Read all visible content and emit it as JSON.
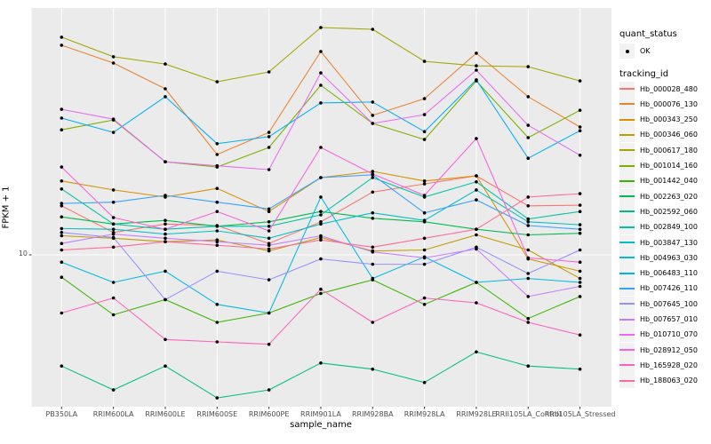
{
  "colors": {
    "panel_background": "#EBEBEB",
    "grid": "#FFFFFF",
    "point": "#000000",
    "tick": "#333333",
    "tick_label": "#4D4D4D",
    "legend_key_background": "#F2F2F2"
  },
  "axes": {
    "y": {
      "title": "FPKM + 1",
      "tick_label": "10"
    },
    "x": {
      "title": "sample_name"
    }
  },
  "legend": {
    "quant_status": {
      "title": "quant_status",
      "items": [
        {
          "label": "OK",
          "marker": "point",
          "color": "#000000"
        }
      ]
    },
    "tracking_id": {
      "title": "tracking_id"
    }
  },
  "chart_data": {
    "type": "line",
    "title": "",
    "xlabel": "sample_name",
    "ylabel": "FPKM + 1",
    "y_scale": "log10",
    "y_tick_labels": [
      "10"
    ],
    "ylim": [
      2.2,
      115
    ],
    "grid": true,
    "legend_position": "right",
    "point_marker": "small black point (quant_status = OK)",
    "x_categories": [
      "PB350LA",
      "RRIM600LA",
      "RRIM600LE",
      "RRIM600SE",
      "RRIM600PE",
      "RRIM901LA",
      "RRIM928BA",
      "RRIM928LA",
      "RRIM928LE",
      "RRII105LA_Control",
      "RRII105LA_Stressed"
    ],
    "series": [
      {
        "name": "Hb_000028_480",
        "color": "#F8766D",
        "quant_status": "OK",
        "values": [
          16.3,
          12.5,
          13.6,
          13.4,
          11.2,
          13.9,
          18.7,
          20.3,
          22.0,
          16.3,
          16.4
        ]
      },
      {
        "name": "Hb_000076_130",
        "color": "#EA8331",
        "quant_status": "OK",
        "values": [
          80.9,
          67.7,
          52.4,
          27.2,
          33.9,
          76.0,
          40.2,
          47.5,
          74.7,
          48.4,
          35.8
        ]
      },
      {
        "name": "Hb_000343_250",
        "color": "#D89000",
        "quant_status": "OK",
        "values": [
          20.9,
          19.1,
          17.8,
          19.4,
          15.4,
          21.6,
          23.0,
          20.9,
          22.0,
          9.6,
          8.5
        ]
      },
      {
        "name": "Hb_000346_060",
        "color": "#C09B00",
        "quant_status": "OK",
        "values": [
          12.1,
          11.8,
          11.4,
          11.6,
          10.4,
          11.9,
          10.4,
          10.5,
          12.2,
          10.5,
          7.9
        ]
      },
      {
        "name": "Hb_000617_180",
        "color": "#A3A500",
        "quant_status": "OK",
        "values": [
          87.6,
          72.1,
          67.1,
          56.2,
          62.0,
          96.5,
          94.8,
          68.9,
          65.9,
          65.3,
          56.7
        ]
      },
      {
        "name": "Hb_001014_160",
        "color": "#7CAE00",
        "quant_status": "OK",
        "values": [
          34.8,
          38.4,
          25.3,
          24.0,
          29.2,
          54.3,
          37.1,
          31.6,
          56.7,
          32.2,
          42.3
        ]
      },
      {
        "name": "Hb_001442_040",
        "color": "#39B600",
        "quant_status": "OK",
        "values": [
          8.0,
          5.5,
          6.4,
          5.1,
          5.6,
          6.8,
          7.8,
          6.1,
          7.6,
          5.3,
          6.6
        ]
      },
      {
        "name": "Hb_002263_020",
        "color": "#00BB4E",
        "quant_status": "OK",
        "values": [
          14.6,
          13.6,
          14.1,
          13.3,
          13.9,
          15.4,
          14.4,
          13.9,
          12.9,
          12.2,
          12.4
        ]
      },
      {
        "name": "Hb_002592_060",
        "color": "#00BF7D",
        "quant_status": "OK",
        "values": [
          3.3,
          2.6,
          3.3,
          2.4,
          2.6,
          3.4,
          3.2,
          2.8,
          3.8,
          3.3,
          3.2
        ]
      },
      {
        "name": "Hb_002849_100",
        "color": "#00C1A3",
        "quant_status": "OK",
        "values": [
          19.3,
          13.6,
          12.9,
          13.3,
          13.3,
          14.9,
          21.6,
          17.8,
          20.7,
          14.3,
          15.4
        ]
      },
      {
        "name": "Hb_003847_130",
        "color": "#00BFC4",
        "quant_status": "OK",
        "values": [
          13.0,
          12.9,
          12.3,
          12.7,
          11.8,
          13.6,
          15.2,
          14.1,
          19.1,
          13.9,
          13.5
        ]
      },
      {
        "name": "Hb_004963_030",
        "color": "#00BAE0",
        "quant_status": "OK",
        "values": [
          9.3,
          7.6,
          8.5,
          6.1,
          5.6,
          17.8,
          7.9,
          9.8,
          7.6,
          7.9,
          7.6
        ]
      },
      {
        "name": "Hb_006483_110",
        "color": "#00B0F6",
        "quant_status": "OK",
        "values": [
          39.1,
          33.9,
          48.4,
          30.3,
          32.5,
          45.5,
          45.9,
          34.2,
          57.3,
          26.2,
          34.5
        ]
      },
      {
        "name": "Hb_007426_110",
        "color": "#35A2FF",
        "quant_status": "OK",
        "values": [
          16.7,
          16.9,
          18.1,
          16.9,
          15.8,
          21.6,
          22.2,
          15.2,
          17.3,
          13.4,
          12.9
        ]
      },
      {
        "name": "Hb_007645_100",
        "color": "#9590FF",
        "quant_status": "OK",
        "values": [
          12.5,
          11.9,
          6.4,
          8.5,
          7.8,
          9.6,
          9.1,
          9.1,
          10.8,
          8.3,
          10.5
        ]
      },
      {
        "name": "Hb_007657_010",
        "color": "#C77CFF",
        "quant_status": "OK",
        "values": [
          11.2,
          12.3,
          11.8,
          11.4,
          11.0,
          12.1,
          10.3,
          9.7,
          10.6,
          6.6,
          7.3
        ]
      },
      {
        "name": "Hb_010710_070",
        "color": "#E76BF3",
        "quant_status": "OK",
        "values": [
          42.7,
          38.7,
          25.3,
          24.3,
          23.4,
          61.4,
          37.1,
          40.5,
          63.1,
          36.4,
          27.0
        ]
      },
      {
        "name": "Hb_028912_050",
        "color": "#FA62DB",
        "quant_status": "OK",
        "values": [
          24.0,
          14.5,
          12.9,
          15.4,
          12.7,
          29.2,
          22.4,
          18.1,
          31.9,
          9.7,
          9.3
        ]
      },
      {
        "name": "Hb_165928_020",
        "color": "#FF62BC",
        "quant_status": "OK",
        "values": [
          5.6,
          6.5,
          4.3,
          4.2,
          4.1,
          7.1,
          5.1,
          6.5,
          6.2,
          5.1,
          4.5
        ]
      },
      {
        "name": "Hb_188063_020",
        "color": "#FF6A98",
        "quant_status": "OK",
        "values": [
          10.5,
          10.8,
          11.4,
          11.0,
          10.6,
          11.6,
          10.8,
          11.8,
          12.9,
          17.8,
          18.4
        ]
      }
    ]
  }
}
